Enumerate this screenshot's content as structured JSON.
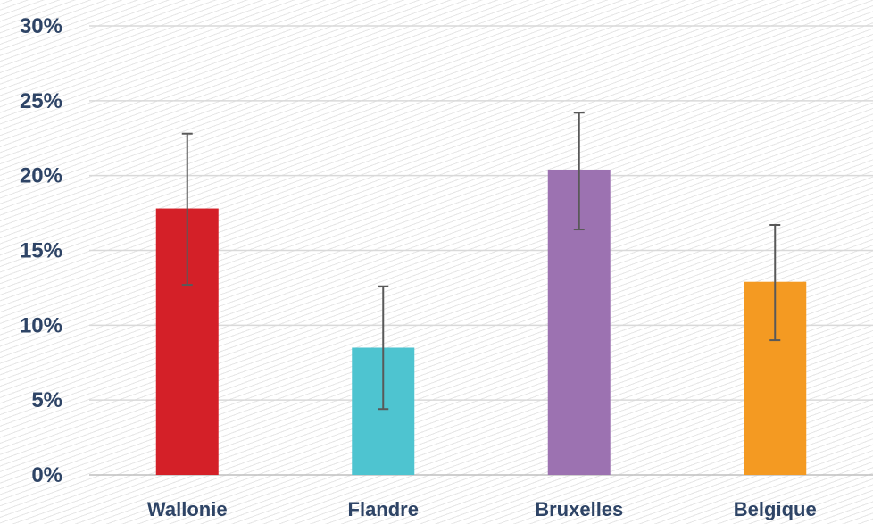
{
  "chart_data": {
    "type": "bar",
    "categories": [
      "Wallonie",
      "Flandre",
      "Bruxelles",
      "Belgique"
    ],
    "values": [
      17.8,
      8.5,
      20.4,
      12.9
    ],
    "error_low": [
      12.7,
      4.4,
      16.4,
      9.0
    ],
    "error_high": [
      22.8,
      12.6,
      24.2,
      16.7
    ],
    "colors": [
      "#d42028",
      "#4ec4d0",
      "#9c72b1",
      "#f49a22"
    ],
    "yticks": [
      "0%",
      "5%",
      "10%",
      "15%",
      "20%",
      "25%",
      "30%"
    ],
    "ylim": [
      0,
      30
    ],
    "grid": true,
    "title": "",
    "xlabel": "",
    "ylabel": ""
  }
}
